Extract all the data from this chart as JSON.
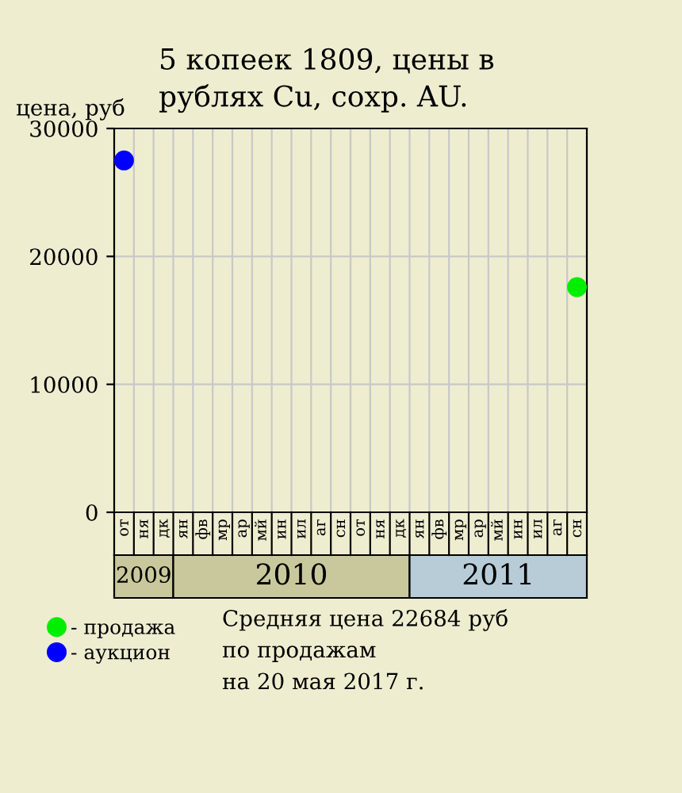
{
  "chart_data": {
    "type": "scatter",
    "title": "5 копеек 1809, цены в\nрублях Cu, сохр. AU.",
    "ylabel": "цена, руб",
    "categories": [
      "от",
      "ня",
      "дк",
      "ян",
      "фв",
      "мр",
      "ар",
      "мй",
      "ин",
      "ил",
      "аг",
      "сн",
      "от",
      "ня",
      "дк",
      "ян",
      "фв",
      "мр",
      "ар",
      "мй",
      "ин",
      "ил",
      "аг",
      "сн"
    ],
    "series": [
      {
        "name": "- продажа",
        "color": "#00ee00",
        "values": [
          null,
          null,
          null,
          null,
          null,
          null,
          null,
          null,
          null,
          null,
          null,
          null,
          null,
          null,
          null,
          null,
          null,
          null,
          null,
          null,
          null,
          null,
          null,
          17600
        ]
      },
      {
        "name": "- аукцион",
        "color": "#0000ff",
        "values": [
          27500,
          null,
          null,
          null,
          null,
          null,
          null,
          null,
          null,
          null,
          null,
          null,
          null,
          null,
          null,
          null,
          null,
          null,
          null,
          null,
          null,
          null,
          null,
          null
        ]
      }
    ],
    "ylim": [
      0,
      30000
    ],
    "yticks": [
      0,
      10000,
      20000,
      30000
    ],
    "grid": true,
    "marker": "circle",
    "legend": "bottom left",
    "annotations": [
      "2009",
      "2010",
      "2011",
      "Средняя цена 22684 руб",
      "по продажам",
      "на 20 мая 2017 г."
    ]
  }
}
